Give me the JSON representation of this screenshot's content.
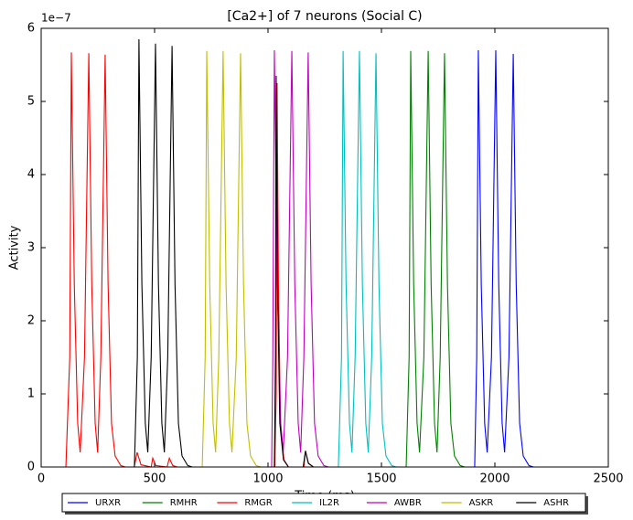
{
  "chart_data": {
    "type": "line",
    "title": "[Ca2+] of 7 neurons (Social C)",
    "xlabel": "Time (ms)",
    "ylabel": "Activity",
    "y_offset_label": "1e−7",
    "xlim": [
      0,
      2500
    ],
    "xticks": [
      0,
      500,
      1000,
      1500,
      2000,
      2500
    ],
    "ylim": [
      0,
      6
    ],
    "yticks": [
      0,
      1,
      2,
      3,
      4,
      5,
      6
    ],
    "grid": false,
    "legend": "below",
    "series": [
      {
        "name": "URXR",
        "color": "#0000ff",
        "x": [
          0,
          1911,
          1920,
          1927,
          1940,
          1955,
          1966,
          1985,
          2004,
          2017,
          2032,
          2043,
          2062,
          2081,
          2094,
          2109,
          2125,
          2150,
          2170,
          2500
        ],
        "values": [
          0,
          0,
          1.5,
          5.7,
          2.5,
          0.6,
          0.2,
          1.5,
          5.7,
          2.5,
          0.6,
          0.2,
          1.5,
          5.65,
          2.5,
          0.6,
          0.15,
          0.02,
          0,
          0
        ]
      },
      {
        "name": "RMHR",
        "color": "#008000",
        "x": [
          0,
          1609,
          1622,
          1629,
          1642,
          1657,
          1668,
          1687,
          1706,
          1719,
          1734,
          1745,
          1759,
          1778,
          1791,
          1806,
          1822,
          1847,
          1867,
          2500
        ],
        "values": [
          0,
          0,
          1.5,
          5.69,
          2.5,
          0.6,
          0.2,
          1.5,
          5.69,
          2.5,
          0.6,
          0.2,
          1.5,
          5.66,
          2.5,
          0.6,
          0.15,
          0.02,
          0,
          0
        ]
      },
      {
        "name": "RMGR",
        "color": "#ff0000",
        "x": [
          0,
          109,
          126,
          133,
          146,
          161,
          172,
          191,
          210,
          223,
          238,
          249,
          263,
          282,
          295,
          310,
          326,
          351,
          371,
          410,
          423,
          440,
          485,
          492,
          505,
          555,
          565,
          580,
          600,
          1030,
          1036,
          1040,
          1046,
          1055,
          1070,
          1090,
          1158,
          1165,
          1178,
          1200,
          2500
        ],
        "values": [
          0,
          0,
          1.5,
          5.67,
          2.5,
          0.6,
          0.2,
          1.5,
          5.66,
          2.5,
          0.6,
          0.2,
          1.5,
          5.64,
          2.5,
          0.6,
          0.15,
          0.02,
          0,
          0,
          0.2,
          0.03,
          0,
          0.12,
          0.02,
          0,
          0.12,
          0.02,
          0,
          0,
          1.0,
          5.25,
          2.5,
          0.6,
          0.1,
          0,
          0,
          0.22,
          0.05,
          0,
          0
        ]
      },
      {
        "name": "IL2R",
        "color": "#00bfbf",
        "x": [
          0,
          1310,
          1324,
          1331,
          1344,
          1359,
          1370,
          1384,
          1403,
          1416,
          1431,
          1442,
          1457,
          1476,
          1489,
          1504,
          1520,
          1545,
          1565,
          2500
        ],
        "values": [
          0,
          0,
          1.5,
          5.69,
          2.5,
          0.6,
          0.2,
          1.5,
          5.69,
          2.5,
          0.6,
          0.2,
          1.5,
          5.66,
          2.5,
          0.6,
          0.15,
          0.02,
          0,
          0
        ]
      },
      {
        "name": "AWBR",
        "color": "#bf00bf",
        "x": [
          0,
          1016,
          1021,
          1028,
          1041,
          1056,
          1067,
          1086,
          1105,
          1118,
          1133,
          1144,
          1158,
          1177,
          1190,
          1205,
          1221,
          1246,
          1266,
          2500
        ],
        "values": [
          0,
          0,
          1.5,
          5.7,
          2.5,
          0.6,
          0.2,
          1.5,
          5.69,
          2.5,
          0.6,
          0.2,
          1.5,
          5.67,
          2.5,
          0.6,
          0.15,
          0.02,
          0,
          0
        ]
      },
      {
        "name": "ASKR",
        "color": "#bfbf00",
        "x": [
          0,
          710,
          723,
          730,
          743,
          758,
          769,
          783,
          802,
          815,
          830,
          841,
          860,
          879,
          892,
          907,
          923,
          948,
          968,
          2500
        ],
        "values": [
          0,
          0,
          1.5,
          5.69,
          2.5,
          0.6,
          0.2,
          1.5,
          5.69,
          2.5,
          0.6,
          0.2,
          1.5,
          5.66,
          2.5,
          0.6,
          0.15,
          0.02,
          0,
          0
        ]
      },
      {
        "name": "ASHR",
        "color": "#000000",
        "x": [
          0,
          411,
          424,
          431,
          444,
          459,
          470,
          485,
          504,
          517,
          532,
          543,
          558,
          577,
          590,
          605,
          621,
          646,
          666,
          1028,
          1033,
          1036,
          1042,
          1052,
          1068,
          1090,
          1155,
          1165,
          1178,
          1200,
          2500
        ],
        "values": [
          0,
          0,
          1.5,
          5.85,
          2.5,
          0.6,
          0.2,
          1.5,
          5.79,
          2.5,
          0.6,
          0.2,
          1.5,
          5.76,
          2.5,
          0.6,
          0.15,
          0.02,
          0,
          0,
          1.5,
          5.35,
          2.5,
          0.6,
          0.1,
          0,
          0,
          0.22,
          0.05,
          0,
          0
        ]
      }
    ]
  }
}
